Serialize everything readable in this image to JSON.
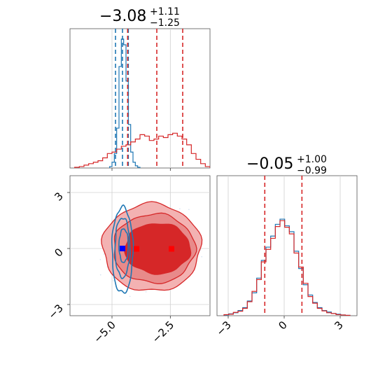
{
  "chart_data": {
    "type": "corner",
    "parameters": [
      {
        "title_value": "−3.08",
        "title_plus": "+1.11",
        "title_minus": "−1.25",
        "xlim": [
          -6.8,
          -0.8
        ],
        "quantiles_red": [
          -4.33,
          -3.08,
          -1.97
        ],
        "quantiles_blue": [
          -4.85,
          -4.55,
          -4.3
        ]
      },
      {
        "title_value": "−0.05",
        "title_plus": "+1.00",
        "title_minus": "−0.99",
        "xlim": [
          -3.6,
          3.9
        ],
        "quantiles_red": [
          -1.04,
          -0.05,
          0.95
        ],
        "quantiles_blue": [
          -1.05,
          -0.05,
          0.95
        ]
      }
    ],
    "scatter_ylim": [
      -3.6,
      3.9
    ],
    "x_ticks_param1": [
      "−5.0",
      "−2.5"
    ],
    "x_ticks_param1_values": [
      -5.0,
      -2.5
    ],
    "y_ticks_param2": [
      "3",
      "0",
      "−3"
    ],
    "y_ticks_param2_values": [
      3,
      0,
      -3
    ],
    "x_ticks_param2": [
      "−3",
      "0",
      "3"
    ],
    "x_ticks_param2_values": [
      -3,
      0,
      3
    ],
    "markers": [
      {
        "series": "blue",
        "x": -4.55,
        "y": 0.0
      },
      {
        "series": "red",
        "x": -3.95,
        "y": -0.02
      },
      {
        "series": "red",
        "x": -2.45,
        "y": -0.02
      }
    ],
    "series": [
      {
        "id": "blue",
        "color": "#1f77b4",
        "hist1_x": [
          -5.05,
          -4.95,
          -4.85,
          -4.75,
          -4.65,
          -4.55,
          -4.45,
          -4.35,
          -4.25,
          -4.15,
          -4.05,
          -3.95,
          -3.85
        ],
        "hist1_y": [
          2,
          8,
          20,
          55,
          140,
          178,
          170,
          120,
          60,
          22,
          8,
          3,
          1
        ],
        "hist2_x": [
          -3.1,
          -2.85,
          -2.6,
          -2.35,
          -2.1,
          -1.85,
          -1.6,
          -1.35,
          -1.1,
          -0.85,
          -0.6,
          -0.35,
          -0.1,
          0.15,
          0.4,
          0.65,
          0.9,
          1.15,
          1.4,
          1.65,
          1.9,
          2.15,
          2.4,
          2.65,
          2.9,
          3.15,
          3.4
        ],
        "hist2_y": [
          2,
          5,
          8,
          14,
          22,
          40,
          62,
          102,
          150,
          186,
          216,
          248,
          262,
          244,
          228,
          175,
          128,
          84,
          56,
          36,
          22,
          14,
          10,
          6,
          4,
          2,
          1
        ]
      },
      {
        "id": "red",
        "color": "#d62728",
        "hist1_x": [
          -6.5,
          -6.3,
          -6.1,
          -5.9,
          -5.7,
          -5.5,
          -5.3,
          -5.1,
          -4.9,
          -4.7,
          -4.5,
          -4.3,
          -4.1,
          -3.9,
          -3.7,
          -3.5,
          -3.3,
          -3.1,
          -2.9,
          -2.7,
          -2.5,
          -2.3,
          -2.1,
          -1.9,
          -1.7,
          -1.5,
          -1.3,
          -1.1,
          -0.9
        ],
        "hist1_y": [
          1,
          2,
          4,
          6,
          8,
          10,
          14,
          20,
          22,
          26,
          30,
          32,
          36,
          40,
          46,
          44,
          38,
          40,
          44,
          42,
          46,
          48,
          44,
          40,
          32,
          20,
          12,
          6,
          2
        ],
        "hist2_x": [
          -3.1,
          -2.85,
          -2.6,
          -2.35,
          -2.1,
          -1.85,
          -1.6,
          -1.35,
          -1.1,
          -0.85,
          -0.6,
          -0.35,
          -0.1,
          0.15,
          0.4,
          0.65,
          0.9,
          1.15,
          1.4,
          1.65,
          1.9,
          2.15,
          2.4,
          2.65,
          2.9,
          3.15,
          3.4
        ],
        "hist2_y": [
          3,
          4,
          9,
          12,
          20,
          38,
          66,
          98,
          146,
          180,
          210,
          242,
          258,
          240,
          222,
          170,
          132,
          88,
          52,
          34,
          20,
          13,
          8,
          6,
          3,
          2,
          1
        ]
      }
    ],
    "contours_red": [
      {
        "level": "outer",
        "fill": "#f3b2b2",
        "cx": -3.3,
        "cy": 0.05,
        "rx": 2.1,
        "ry": 2.35
      },
      {
        "level": "middle",
        "fill": "#e88a8a",
        "cx": -3.2,
        "cy": 0.0,
        "rx": 1.75,
        "ry": 1.85
      },
      {
        "level": "inner",
        "fill": "#d62728",
        "cx": -3.05,
        "cy": 0.0,
        "rx": 1.4,
        "ry": 1.35
      }
    ],
    "contours_blue": [
      {
        "level": "outer",
        "cx": -4.55,
        "cy": -0.1,
        "rx": 0.45,
        "ry": 2.3
      },
      {
        "level": "middle",
        "cx": -4.55,
        "cy": 0.05,
        "rx": 0.32,
        "ry": 1.6
      },
      {
        "level": "inner",
        "cx": -4.5,
        "cy": 0.15,
        "rx": 0.2,
        "ry": 0.9
      }
    ]
  }
}
